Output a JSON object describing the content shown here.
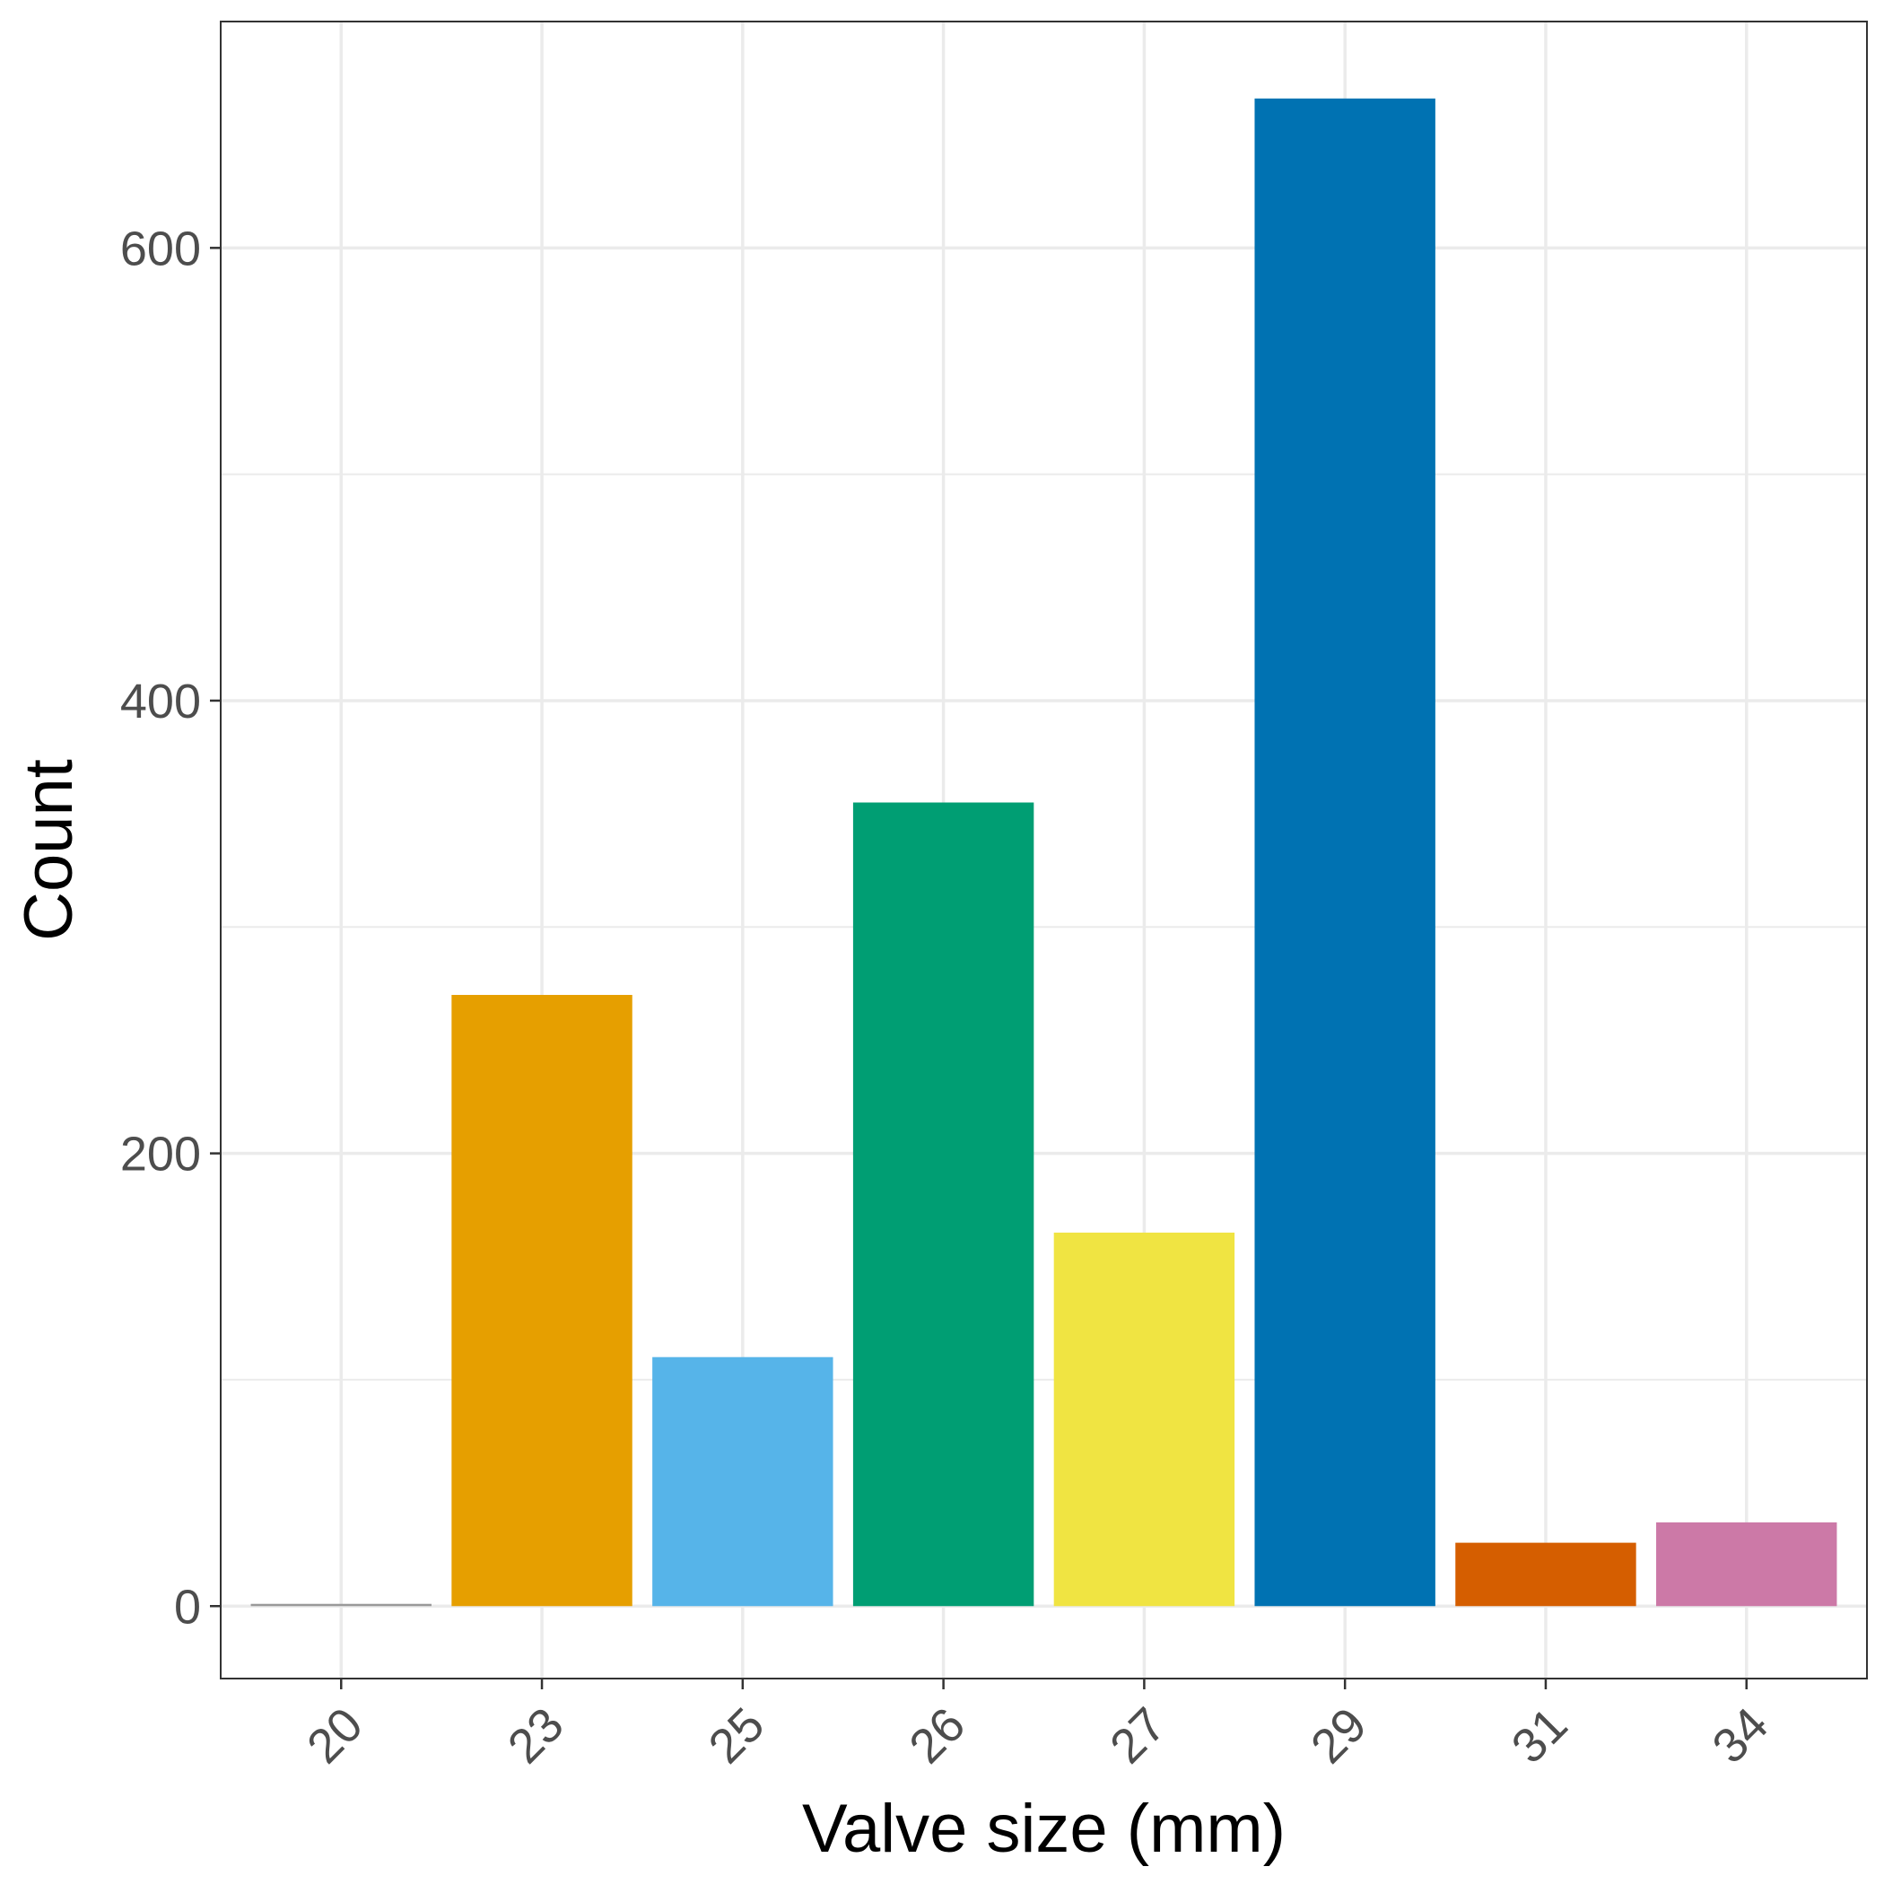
{
  "chart_data": {
    "type": "bar",
    "title": "",
    "xlabel": "Valve size (mm)",
    "ylabel": "Count",
    "categories": [
      "20",
      "23",
      "25",
      "26",
      "27",
      "29",
      "31",
      "34"
    ],
    "values": [
      1,
      270,
      110,
      355,
      165,
      666,
      28,
      37
    ],
    "colors": [
      "#999999",
      "#E69F00",
      "#56B4E9",
      "#009E73",
      "#F0E442",
      "#0072B2",
      "#D55E00",
      "#CC79A7"
    ],
    "ylim": [
      -32,
      700
    ],
    "yticks": [
      0,
      200,
      400,
      600
    ],
    "yticks_minor": [
      100,
      300,
      500
    ],
    "grid": true,
    "legend": "none",
    "panel_border": "#333333",
    "grid_color": "#ebebeb"
  }
}
